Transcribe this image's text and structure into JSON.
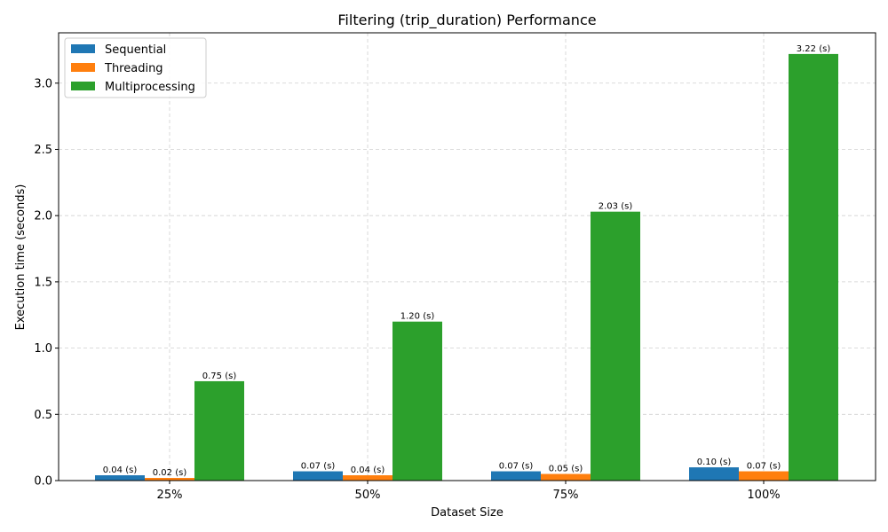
{
  "chart_data": {
    "type": "bar",
    "title": "Filtering (trip_duration) Performance",
    "xlabel": "Dataset Size",
    "ylabel": "Execution time (seconds)",
    "categories": [
      "25%",
      "50%",
      "75%",
      "100%"
    ],
    "series": [
      {
        "name": "Sequential",
        "color": "#1f77b4",
        "values": [
          0.04,
          0.07,
          0.07,
          0.1
        ],
        "labels": [
          "0.04 (s)",
          "0.07 (s)",
          "0.07 (s)",
          "0.10 (s)"
        ]
      },
      {
        "name": "Threading",
        "color": "#ff7f0e",
        "values": [
          0.02,
          0.04,
          0.05,
          0.07
        ],
        "labels": [
          "0.02 (s)",
          "0.04 (s)",
          "0.05 (s)",
          "0.07 (s)"
        ]
      },
      {
        "name": "Multiprocessing",
        "color": "#2ca02c",
        "values": [
          0.75,
          1.2,
          2.03,
          3.22
        ],
        "labels": [
          "0.75 (s)",
          "1.20 (s)",
          "2.03 (s)",
          "3.22 (s)"
        ]
      }
    ],
    "ylim": [
      0,
      3.38
    ],
    "yticks": [
      0.0,
      0.5,
      1.0,
      1.5,
      2.0,
      2.5,
      3.0
    ],
    "ytick_labels": [
      "0.0",
      "0.5",
      "1.0",
      "1.5",
      "2.0",
      "2.5",
      "3.0"
    ],
    "grid": true,
    "legend_position": "top-left"
  }
}
